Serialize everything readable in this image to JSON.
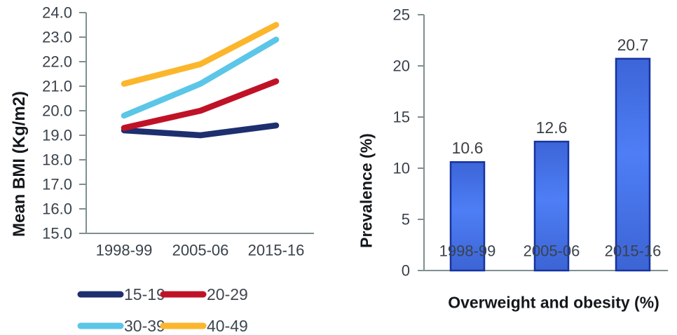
{
  "chart_data": [
    {
      "type": "line",
      "ylabel": "Mean BMI (Kg/m2)",
      "categories": [
        "1998-99",
        "2005-06",
        "2015-16"
      ],
      "ylim": [
        15,
        24
      ],
      "y_tick_labels": [
        "15.0",
        "16.0",
        "17.0",
        "18.0",
        "19.0",
        "20.0",
        "21.0",
        "22.0",
        "23.0",
        "24.0"
      ],
      "grid": false,
      "legend_position": "bottom",
      "series": [
        {
          "name": "15-19",
          "color": "#1e2f6f",
          "values": [
            19.2,
            19.0,
            19.4
          ]
        },
        {
          "name": "20-29",
          "color": "#c01227",
          "values": [
            19.3,
            20.0,
            21.2
          ]
        },
        {
          "name": "30-39",
          "color": "#5bc6e8",
          "values": [
            19.8,
            21.1,
            22.9
          ]
        },
        {
          "name": "40-49",
          "color": "#fbb62c",
          "values": [
            21.1,
            21.9,
            23.5
          ]
        }
      ]
    },
    {
      "type": "bar",
      "ylabel": "Prevalence (%)",
      "xlabel": "Overweight and obesity (%)",
      "categories": [
        "1998-99",
        "2005-06",
        "2015-16"
      ],
      "values": [
        10.6,
        12.6,
        20.7
      ],
      "data_labels": [
        "10.6",
        "12.6",
        "20.7"
      ],
      "ylim": [
        0,
        25
      ],
      "y_tick_labels": [
        "0",
        "5",
        "10",
        "15",
        "20",
        "25"
      ],
      "grid": false,
      "bar_fill": "#4a77ee",
      "bar_fill_light": "#4e7ef5",
      "bar_fill_dark": "#3c64d4",
      "bar_border": "#17339e"
    }
  ],
  "colors": {
    "axis": "#7f8f8f",
    "tick_label": "#39424b",
    "data_label": "#3a3f45",
    "legend_label": "#3f4750",
    "background": "#ffffff"
  }
}
